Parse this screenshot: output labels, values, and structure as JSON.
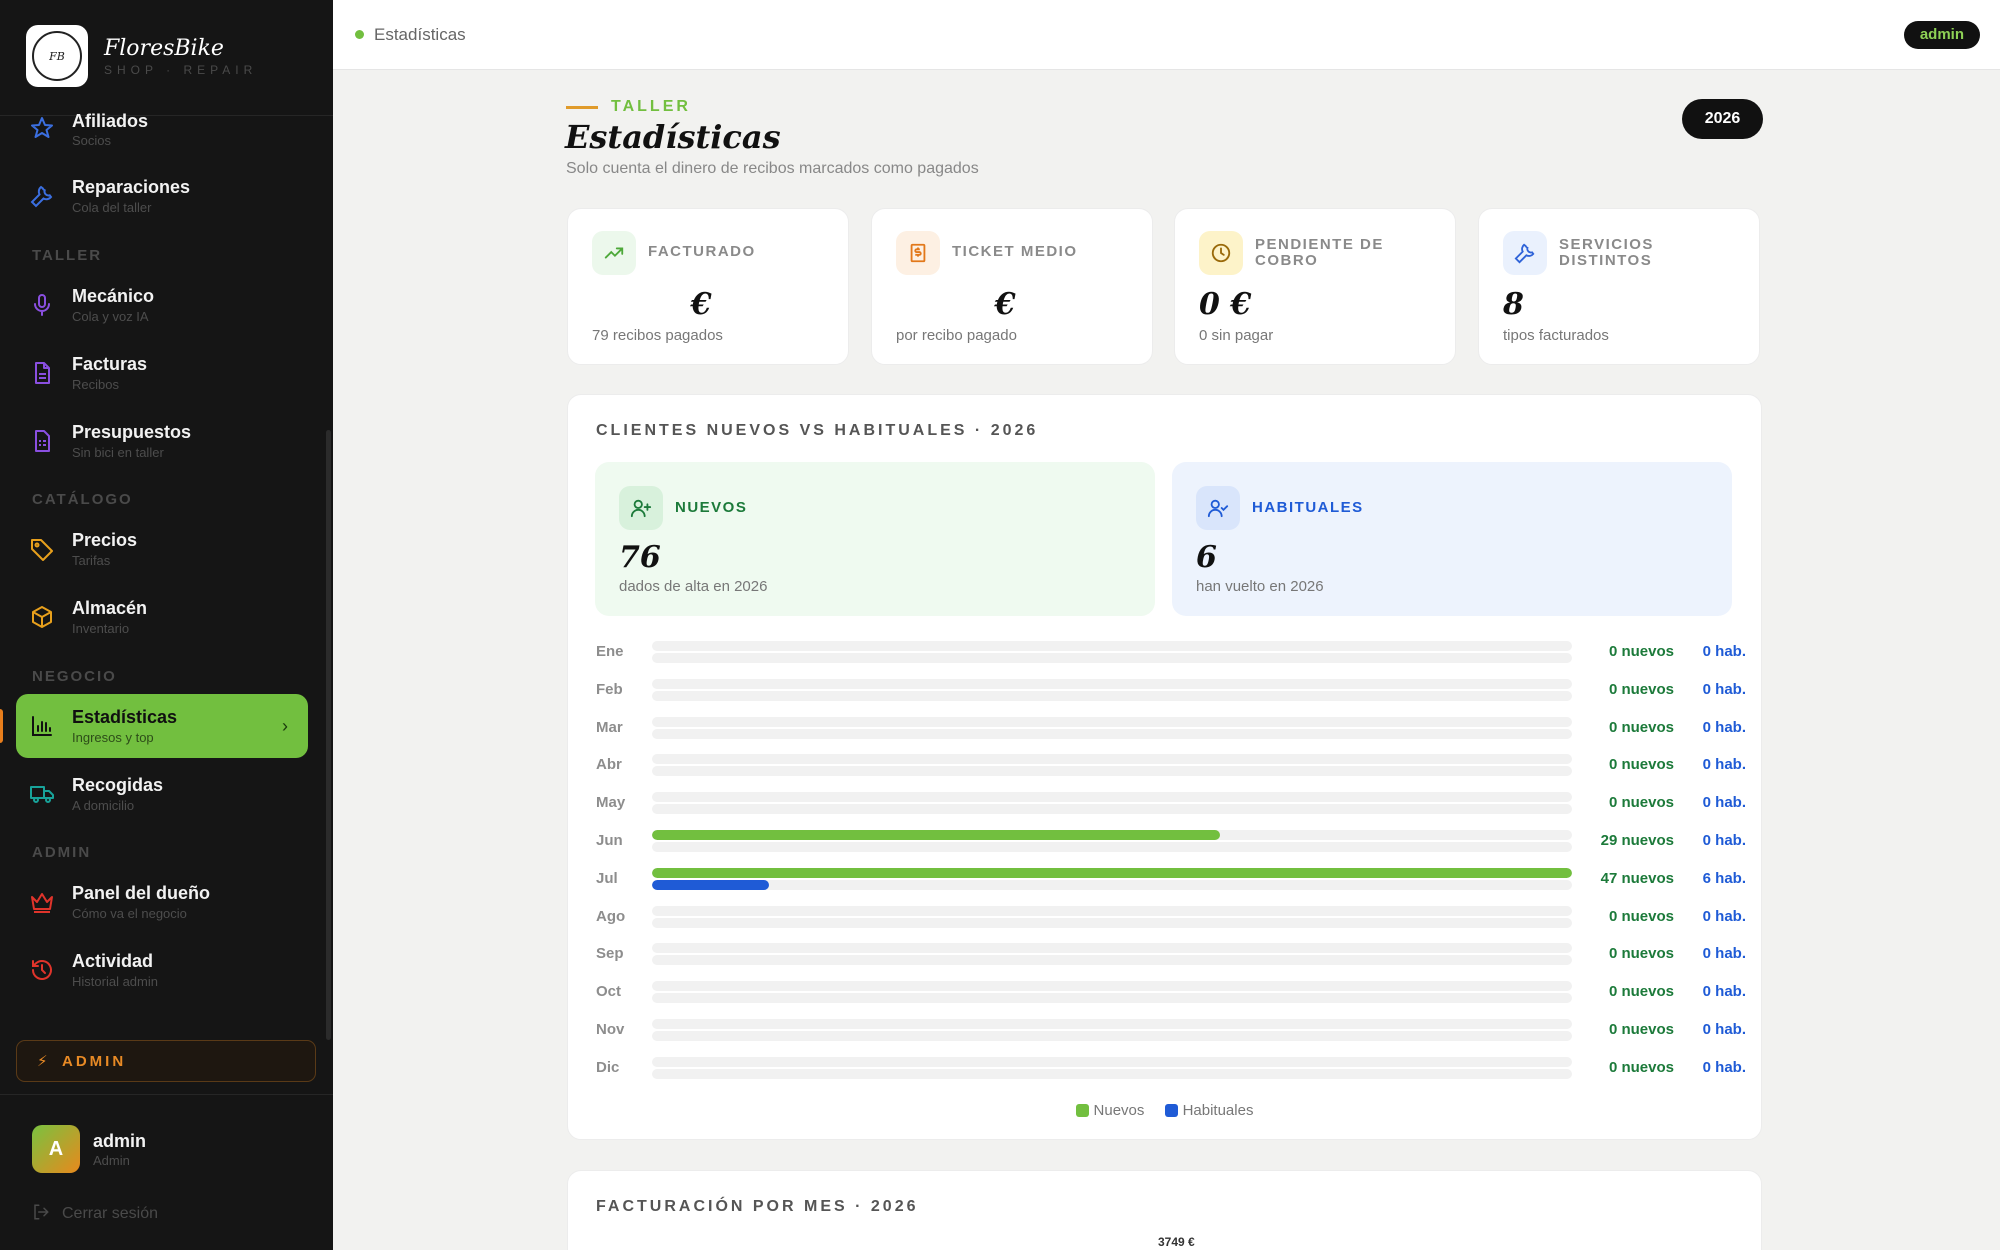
{
  "brand": {
    "name": "FloresBike",
    "subtitle": "SHOP · REPAIR",
    "logo_text": "Flores Bike"
  },
  "sidebar": {
    "items": [
      {
        "id": "afiliados",
        "label": "Afiliados",
        "sub": "Socios",
        "icon": "star-icon",
        "color": "#3b6fe0"
      },
      {
        "id": "reparaciones",
        "label": "Reparaciones",
        "sub": "Cola del taller",
        "icon": "wrench-icon",
        "color": "#3b6fe0"
      },
      {
        "id": "mecanico",
        "label": "Mecánico",
        "sub": "Cola y voz IA",
        "icon": "mic-icon",
        "color": "#8a4fe0"
      },
      {
        "id": "facturas",
        "label": "Facturas",
        "sub": "Recibos",
        "icon": "invoice-icon",
        "color": "#8a4fe0"
      },
      {
        "id": "presupuestos",
        "label": "Presupuestos",
        "sub": "Sin bici en taller",
        "icon": "budget-icon",
        "color": "#8a4fe0"
      },
      {
        "id": "precios",
        "label": "Precios",
        "sub": "Tarifas",
        "icon": "tag-icon",
        "color": "#e8a01c"
      },
      {
        "id": "almacen",
        "label": "Almacén",
        "sub": "Inventario",
        "icon": "box-icon",
        "color": "#e8a01c"
      },
      {
        "id": "estadisticas",
        "label": "Estadísticas",
        "sub": "Ingresos y top",
        "icon": "bar-chart-icon",
        "color": "#111111"
      },
      {
        "id": "recogidas",
        "label": "Recogidas",
        "sub": "A domicilio",
        "icon": "truck-icon",
        "color": "#18a39a"
      },
      {
        "id": "panel",
        "label": "Panel del dueño",
        "sub": "Cómo va el negocio",
        "icon": "crown-icon",
        "color": "#e0342b"
      },
      {
        "id": "actividad",
        "label": "Actividad",
        "sub": "Historial admin",
        "icon": "history-icon",
        "color": "#e0342b"
      }
    ],
    "sections": [
      "TALLER",
      "CATÁLOGO",
      "NEGOCIO",
      "ADMIN"
    ],
    "admin_tag": "ADMIN",
    "user": {
      "initial": "A",
      "name": "admin",
      "role": "Admin"
    },
    "logout": "Cerrar sesión"
  },
  "topbar": {
    "breadcrumb": "Estadísticas",
    "user_pill": "admin"
  },
  "header": {
    "kicker": "TALLER",
    "title": "Estadísticas",
    "description": "Solo cuenta el dinero de recibos marcados como pagados",
    "year": "2026"
  },
  "kpis": [
    {
      "label": "FACTURADO",
      "value": "€",
      "note": "79 recibos pagados",
      "icon": "trend-up-icon"
    },
    {
      "label": "TICKET MEDIO",
      "value": "€",
      "note": "por recibo pagado",
      "icon": "receipt-icon"
    },
    {
      "label": "PENDIENTE DE COBRO",
      "value": "0 €",
      "note": "0 sin pagar",
      "icon": "clock-icon"
    },
    {
      "label": "SERVICIOS DISTINTOS",
      "value": "8",
      "note": "tipos facturados",
      "icon": "wrench-icon"
    }
  ],
  "clients": {
    "title": "CLIENTES NUEVOS VS HABITUALES · 2026",
    "nuevos": {
      "label": "NUEVOS",
      "value": "76",
      "note": "dados de alta en 2026"
    },
    "habituales": {
      "label": "HABITUALES",
      "value": "6",
      "note": "han vuelto en 2026"
    },
    "legend": {
      "new": "Nuevos",
      "hab": "Habituales"
    },
    "colors": {
      "new": "#72bf3f",
      "hab": "#1f5bd6"
    }
  },
  "chart_data": {
    "type": "bar",
    "categories": [
      "Ene",
      "Feb",
      "Mar",
      "Abr",
      "May",
      "Jun",
      "Jul",
      "Ago",
      "Sep",
      "Oct",
      "Nov",
      "Dic"
    ],
    "series": [
      {
        "name": "Nuevos",
        "values": [
          0,
          0,
          0,
          0,
          0,
          29,
          47,
          0,
          0,
          0,
          0,
          0
        ]
      },
      {
        "name": "Habituales",
        "values": [
          0,
          0,
          0,
          0,
          0,
          0,
          6,
          0,
          0,
          0,
          0,
          0
        ]
      }
    ],
    "new_labels": [
      "0 nuevos",
      "0 nuevos",
      "0 nuevos",
      "0 nuevos",
      "0 nuevos",
      "29 nuevos",
      "47 nuevos",
      "0 nuevos",
      "0 nuevos",
      "0 nuevos",
      "0 nuevos",
      "0 nuevos"
    ],
    "hab_labels": [
      "0 hab.",
      "0 hab.",
      "0 hab.",
      "0 hab.",
      "0 hab.",
      "0 hab.",
      "6 hab.",
      "0 hab.",
      "0 hab.",
      "0 hab.",
      "0 hab.",
      "0 hab."
    ],
    "max": 47
  },
  "revenue": {
    "title": "FACTURACIÓN POR MES · 2026",
    "peak_label": "3749 €"
  }
}
